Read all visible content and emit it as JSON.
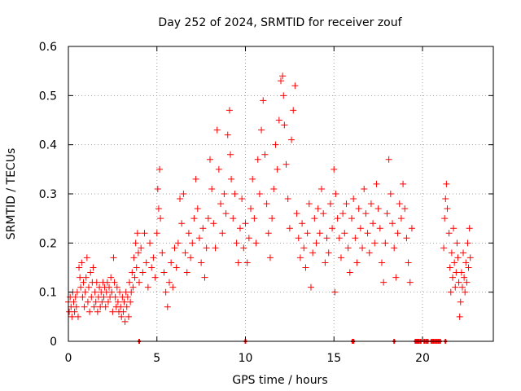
{
  "chart_data": {
    "type": "scatter",
    "title": "Day 252 of 2024, SRMTID for receiver zouf",
    "xlabel": "GPS time / hours",
    "ylabel": "SRMTID / TECUs",
    "xlim": [
      0,
      24
    ],
    "ylim": [
      0,
      0.6
    ],
    "xticks": [
      0,
      5,
      10,
      15,
      20
    ],
    "yticks": [
      0,
      0.1,
      0.2,
      0.3,
      0.4,
      0.5,
      0.6
    ],
    "xtick_labels": [
      "0",
      "5",
      "10",
      "15",
      "20"
    ],
    "ytick_labels": [
      "0",
      "0.1",
      "0.2",
      "0.3",
      "0.4",
      "0.5",
      "0.6"
    ],
    "grid": true,
    "marker": "+",
    "color": "#ff0000",
    "series": [
      {
        "name": "SRMTID",
        "points": [
          [
            0.0,
            0.08
          ],
          [
            0.05,
            0.06
          ],
          [
            0.1,
            0.09
          ],
          [
            0.15,
            0.07
          ],
          [
            0.2,
            0.05
          ],
          [
            0.25,
            0.1
          ],
          [
            0.3,
            0.08
          ],
          [
            0.35,
            0.06
          ],
          [
            0.4,
            0.09
          ],
          [
            0.45,
            0.07
          ],
          [
            0.5,
            0.1
          ],
          [
            0.55,
            0.05
          ],
          [
            0.6,
            0.15
          ],
          [
            0.65,
            0.13
          ],
          [
            0.7,
            0.11
          ],
          [
            0.75,
            0.16
          ],
          [
            0.8,
            0.09
          ],
          [
            0.85,
            0.12
          ],
          [
            0.9,
            0.07
          ],
          [
            0.95,
            0.1
          ],
          [
            1.0,
            0.13
          ],
          [
            1.05,
            0.17
          ],
          [
            1.1,
            0.08
          ],
          [
            1.15,
            0.11
          ],
          [
            1.2,
            0.06
          ],
          [
            1.25,
            0.14
          ],
          [
            1.3,
            0.09
          ],
          [
            1.35,
            0.12
          ],
          [
            1.4,
            0.15
          ],
          [
            1.45,
            0.07
          ],
          [
            1.5,
            0.1
          ],
          [
            1.55,
            0.08
          ],
          [
            1.6,
            0.12
          ],
          [
            1.65,
            0.06
          ],
          [
            1.7,
            0.09
          ],
          [
            1.75,
            0.11
          ],
          [
            1.8,
            0.07
          ],
          [
            1.85,
            0.1
          ],
          [
            1.9,
            0.08
          ],
          [
            1.95,
            0.12
          ],
          [
            2.0,
            0.09
          ],
          [
            2.05,
            0.11
          ],
          [
            2.1,
            0.07
          ],
          [
            2.15,
            0.1
          ],
          [
            2.2,
            0.12
          ],
          [
            2.25,
            0.08
          ],
          [
            2.3,
            0.11
          ],
          [
            2.35,
            0.09
          ],
          [
            2.4,
            0.13
          ],
          [
            2.45,
            0.1
          ],
          [
            2.5,
            0.06
          ],
          [
            2.55,
            0.17
          ],
          [
            2.6,
            0.12
          ],
          [
            2.65,
            0.09
          ],
          [
            2.7,
            0.07
          ],
          [
            2.75,
            0.11
          ],
          [
            2.8,
            0.08
          ],
          [
            2.85,
            0.06
          ],
          [
            2.9,
            0.1
          ],
          [
            2.95,
            0.07
          ],
          [
            3.0,
            0.05
          ],
          [
            3.05,
            0.09
          ],
          [
            3.1,
            0.06
          ],
          [
            3.15,
            0.08
          ],
          [
            3.2,
            0.04
          ],
          [
            3.25,
            0.1
          ],
          [
            3.3,
            0.07
          ],
          [
            3.35,
            0.09
          ],
          [
            3.4,
            0.05
          ],
          [
            3.45,
            0.12
          ],
          [
            3.5,
            0.08
          ],
          [
            3.55,
            0.1
          ],
          [
            3.6,
            0.14
          ],
          [
            3.65,
            0.11
          ],
          [
            3.7,
            0.17
          ],
          [
            3.75,
            0.13
          ],
          [
            3.8,
            0.2
          ],
          [
            3.85,
            0.15
          ],
          [
            3.9,
            0.22
          ],
          [
            3.95,
            0.18
          ],
          [
            4.0,
            0.12
          ],
          [
            4.1,
            0.19
          ],
          [
            4.2,
            0.14
          ],
          [
            4.3,
            0.22
          ],
          [
            4.4,
            0.16
          ],
          [
            4.5,
            0.11
          ],
          [
            4.6,
            0.2
          ],
          [
            4.7,
            0.15
          ],
          [
            4.8,
            0.17
          ],
          [
            4.9,
            0.13
          ],
          [
            5.0,
            0.22
          ],
          [
            5.05,
            0.31
          ],
          [
            5.1,
            0.27
          ],
          [
            5.15,
            0.35
          ],
          [
            5.2,
            0.25
          ],
          [
            5.3,
            0.18
          ],
          [
            5.4,
            0.14
          ],
          [
            5.5,
            0.1
          ],
          [
            5.6,
            0.07
          ],
          [
            5.7,
            0.12
          ],
          [
            5.8,
            0.16
          ],
          [
            5.9,
            0.11
          ],
          [
            6.0,
            0.19
          ],
          [
            6.1,
            0.15
          ],
          [
            6.2,
            0.2
          ],
          [
            6.3,
            0.29
          ],
          [
            6.4,
            0.24
          ],
          [
            6.5,
            0.3
          ],
          [
            6.6,
            0.18
          ],
          [
            6.7,
            0.14
          ],
          [
            6.8,
            0.22
          ],
          [
            6.9,
            0.17
          ],
          [
            7.0,
            0.2
          ],
          [
            7.1,
            0.25
          ],
          [
            7.2,
            0.33
          ],
          [
            7.3,
            0.27
          ],
          [
            7.4,
            0.21
          ],
          [
            7.5,
            0.16
          ],
          [
            7.6,
            0.23
          ],
          [
            7.7,
            0.13
          ],
          [
            7.8,
            0.19
          ],
          [
            7.9,
            0.25
          ],
          [
            8.0,
            0.37
          ],
          [
            8.1,
            0.31
          ],
          [
            8.2,
            0.24
          ],
          [
            8.3,
            0.19
          ],
          [
            8.4,
            0.43
          ],
          [
            8.5,
            0.35
          ],
          [
            8.6,
            0.28
          ],
          [
            8.7,
            0.22
          ],
          [
            8.8,
            0.3
          ],
          [
            8.9,
            0.26
          ],
          [
            9.0,
            0.42
          ],
          [
            9.1,
            0.47
          ],
          [
            9.15,
            0.38
          ],
          [
            9.2,
            0.33
          ],
          [
            9.3,
            0.25
          ],
          [
            9.4,
            0.3
          ],
          [
            9.5,
            0.2
          ],
          [
            9.6,
            0.16
          ],
          [
            9.7,
            0.23
          ],
          [
            9.8,
            0.29
          ],
          [
            9.9,
            0.19
          ],
          [
            10.0,
            0.24
          ],
          [
            10.1,
            0.16
          ],
          [
            10.2,
            0.21
          ],
          [
            10.3,
            0.27
          ],
          [
            10.4,
            0.33
          ],
          [
            10.5,
            0.25
          ],
          [
            10.6,
            0.2
          ],
          [
            10.7,
            0.37
          ],
          [
            10.8,
            0.3
          ],
          [
            10.9,
            0.43
          ],
          [
            11.0,
            0.49
          ],
          [
            11.1,
            0.38
          ],
          [
            11.2,
            0.28
          ],
          [
            11.3,
            0.22
          ],
          [
            11.4,
            0.17
          ],
          [
            11.5,
            0.25
          ],
          [
            11.6,
            0.31
          ],
          [
            11.7,
            0.4
          ],
          [
            11.8,
            0.35
          ],
          [
            11.9,
            0.45
          ],
          [
            12.0,
            0.53
          ],
          [
            12.1,
            0.54
          ],
          [
            12.15,
            0.5
          ],
          [
            12.2,
            0.44
          ],
          [
            12.3,
            0.36
          ],
          [
            12.4,
            0.29
          ],
          [
            12.5,
            0.23
          ],
          [
            12.6,
            0.41
          ],
          [
            12.7,
            0.47
          ],
          [
            12.8,
            0.52
          ],
          [
            12.9,
            0.26
          ],
          [
            13.0,
            0.21
          ],
          [
            13.1,
            0.17
          ],
          [
            13.2,
            0.24
          ],
          [
            13.3,
            0.19
          ],
          [
            13.4,
            0.15
          ],
          [
            13.5,
            0.22
          ],
          [
            13.6,
            0.28
          ],
          [
            13.7,
            0.11
          ],
          [
            13.8,
            0.18
          ],
          [
            13.9,
            0.25
          ],
          [
            14.0,
            0.2
          ],
          [
            14.1,
            0.27
          ],
          [
            14.2,
            0.22
          ],
          [
            14.3,
            0.31
          ],
          [
            14.4,
            0.26
          ],
          [
            14.5,
            0.16
          ],
          [
            14.6,
            0.21
          ],
          [
            14.7,
            0.18
          ],
          [
            14.8,
            0.28
          ],
          [
            14.9,
            0.23
          ],
          [
            15.0,
            0.35
          ],
          [
            15.05,
            0.1
          ],
          [
            15.1,
            0.3
          ],
          [
            15.2,
            0.25
          ],
          [
            15.3,
            0.21
          ],
          [
            15.4,
            0.17
          ],
          [
            15.5,
            0.26
          ],
          [
            15.6,
            0.22
          ],
          [
            15.7,
            0.28
          ],
          [
            15.8,
            0.19
          ],
          [
            15.9,
            0.14
          ],
          [
            16.0,
            0.25
          ],
          [
            16.1,
            0.29
          ],
          [
            16.2,
            0.21
          ],
          [
            16.3,
            0.16
          ],
          [
            16.4,
            0.27
          ],
          [
            16.5,
            0.23
          ],
          [
            16.6,
            0.19
          ],
          [
            16.7,
            0.31
          ],
          [
            16.8,
            0.26
          ],
          [
            16.9,
            0.22
          ],
          [
            17.0,
            0.18
          ],
          [
            17.1,
            0.28
          ],
          [
            17.2,
            0.24
          ],
          [
            17.3,
            0.2
          ],
          [
            17.4,
            0.32
          ],
          [
            17.5,
            0.27
          ],
          [
            17.6,
            0.23
          ],
          [
            17.7,
            0.16
          ],
          [
            17.8,
            0.12
          ],
          [
            17.9,
            0.2
          ],
          [
            18.0,
            0.26
          ],
          [
            18.1,
            0.37
          ],
          [
            18.2,
            0.3
          ],
          [
            18.3,
            0.24
          ],
          [
            18.4,
            0.19
          ],
          [
            18.5,
            0.13
          ],
          [
            18.6,
            0.22
          ],
          [
            18.7,
            0.28
          ],
          [
            18.8,
            0.25
          ],
          [
            18.9,
            0.32
          ],
          [
            19.0,
            0.27
          ],
          [
            19.1,
            0.21
          ],
          [
            19.2,
            0.16
          ],
          [
            19.3,
            0.12
          ],
          [
            19.4,
            0.23
          ],
          [
            21.2,
            0.19
          ],
          [
            21.25,
            0.25
          ],
          [
            21.3,
            0.29
          ],
          [
            21.35,
            0.32
          ],
          [
            21.4,
            0.27
          ],
          [
            21.5,
            0.22
          ],
          [
            21.55,
            0.15
          ],
          [
            21.6,
            0.1
          ],
          [
            21.65,
            0.18
          ],
          [
            21.7,
            0.13
          ],
          [
            21.75,
            0.23
          ],
          [
            21.8,
            0.16
          ],
          [
            21.85,
            0.11
          ],
          [
            21.9,
            0.14
          ],
          [
            21.95,
            0.2
          ],
          [
            22.0,
            0.17
          ],
          [
            22.05,
            0.12
          ],
          [
            22.1,
            0.05
          ],
          [
            22.15,
            0.08
          ],
          [
            22.2,
            0.14
          ],
          [
            22.25,
            0.11
          ],
          [
            22.3,
            0.18
          ],
          [
            22.35,
            0.13
          ],
          [
            22.4,
            0.1
          ],
          [
            22.45,
            0.16
          ],
          [
            22.5,
            0.12
          ],
          [
            22.55,
            0.2
          ],
          [
            22.6,
            0.15
          ],
          [
            22.65,
            0.23
          ],
          [
            22.7,
            0.17
          ]
        ]
      }
    ],
    "zero_points": [
      4.0,
      10.0,
      16.05,
      16.1,
      18.4,
      19.6,
      19.65,
      19.7,
      19.75,
      19.8,
      19.9,
      20.1,
      20.2,
      20.3,
      20.5,
      20.6,
      20.7,
      20.8,
      20.9,
      21.0,
      21.3
    ]
  }
}
